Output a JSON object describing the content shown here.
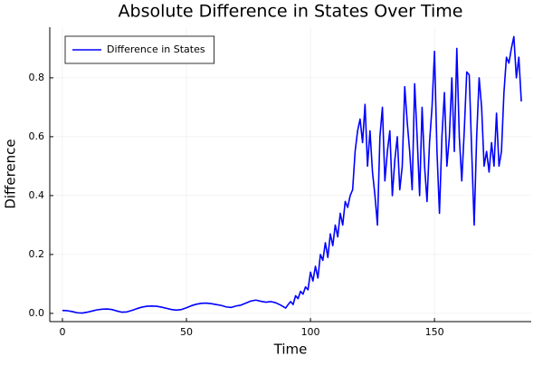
{
  "chart_data": {
    "type": "line",
    "title": "Absolute Difference in States Over Time",
    "x_label": "Time",
    "y_label": "Difference",
    "x": [
      0,
      2,
      4,
      6,
      8,
      10,
      12,
      14,
      16,
      18,
      20,
      22,
      24,
      26,
      28,
      30,
      32,
      34,
      36,
      38,
      40,
      42,
      44,
      46,
      48,
      50,
      52,
      54,
      56,
      58,
      60,
      62,
      64,
      66,
      68,
      70,
      72,
      74,
      76,
      78,
      80,
      82,
      84,
      86,
      88,
      90,
      91,
      92,
      93,
      94,
      95,
      96,
      97,
      98,
      99,
      100,
      101,
      102,
      103,
      104,
      105,
      106,
      107,
      108,
      109,
      110,
      111,
      112,
      113,
      114,
      115,
      116,
      117,
      118,
      119,
      120,
      121,
      122,
      123,
      124,
      125,
      126,
      127,
      128,
      129,
      130,
      131,
      132,
      133,
      134,
      135,
      136,
      137,
      138,
      139,
      140,
      141,
      142,
      143,
      144,
      145,
      146,
      147,
      148,
      149,
      150,
      151,
      152,
      153,
      154,
      155,
      156,
      157,
      158,
      159,
      160,
      161,
      162,
      163,
      164,
      165,
      166,
      167,
      168,
      169,
      170,
      171,
      172,
      173,
      174,
      175,
      176,
      177,
      178,
      179,
      180,
      181,
      182,
      183,
      184,
      185
    ],
    "series": [
      {
        "name": "Difference in States",
        "color": "#0000ff",
        "values": [
          0.01,
          0.009,
          0.006,
          0.002,
          0.001,
          0.004,
          0.008,
          0.012,
          0.014,
          0.015,
          0.013,
          0.008,
          0.004,
          0.005,
          0.01,
          0.016,
          0.021,
          0.024,
          0.025,
          0.024,
          0.021,
          0.017,
          0.013,
          0.011,
          0.013,
          0.019,
          0.026,
          0.031,
          0.034,
          0.035,
          0.033,
          0.03,
          0.027,
          0.022,
          0.02,
          0.025,
          0.028,
          0.035,
          0.042,
          0.045,
          0.041,
          0.038,
          0.04,
          0.036,
          0.028,
          0.018,
          0.03,
          0.04,
          0.03,
          0.06,
          0.05,
          0.075,
          0.065,
          0.09,
          0.08,
          0.14,
          0.11,
          0.16,
          0.12,
          0.2,
          0.18,
          0.24,
          0.19,
          0.27,
          0.23,
          0.3,
          0.26,
          0.34,
          0.3,
          0.38,
          0.36,
          0.4,
          0.42,
          0.55,
          0.62,
          0.66,
          0.58,
          0.71,
          0.5,
          0.62,
          0.48,
          0.4,
          0.3,
          0.6,
          0.7,
          0.45,
          0.55,
          0.62,
          0.4,
          0.52,
          0.6,
          0.42,
          0.5,
          0.77,
          0.65,
          0.55,
          0.42,
          0.78,
          0.6,
          0.4,
          0.7,
          0.5,
          0.38,
          0.58,
          0.7,
          0.89,
          0.55,
          0.34,
          0.6,
          0.75,
          0.5,
          0.6,
          0.8,
          0.55,
          0.9,
          0.6,
          0.45,
          0.62,
          0.82,
          0.81,
          0.55,
          0.3,
          0.6,
          0.8,
          0.7,
          0.5,
          0.55,
          0.48,
          0.58,
          0.5,
          0.68,
          0.5,
          0.55,
          0.75,
          0.87,
          0.85,
          0.9,
          0.94,
          0.8,
          0.87,
          0.72
        ]
      }
    ],
    "xlim": [
      -5.1,
      189
    ],
    "ylim": [
      -0.028,
      0.972
    ],
    "xticks": [
      0,
      50,
      100,
      150
    ],
    "yticks": [
      {
        "value": 0,
        "label": "0.0"
      },
      0.2,
      0.4,
      0.6,
      0.8
    ],
    "grid": true,
    "legend_position": "top-left"
  }
}
